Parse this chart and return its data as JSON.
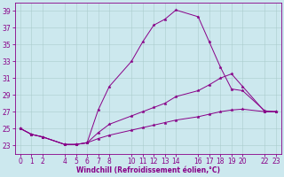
{
  "xlabel": "Windchill (Refroidissement éolien,°C)",
  "bg_color": "#cce8ee",
  "grid_color": "#aacccc",
  "line_color": "#880088",
  "x_ticks": [
    0,
    1,
    2,
    4,
    5,
    6,
    7,
    8,
    10,
    11,
    12,
    13,
    14,
    16,
    17,
    18,
    19,
    20,
    22,
    23
  ],
  "ylim": [
    22.0,
    40.0
  ],
  "yticks": [
    23,
    25,
    27,
    29,
    31,
    33,
    35,
    37,
    39
  ],
  "xlim": [
    -0.5,
    23.5
  ],
  "line1_x": [
    0,
    1,
    2,
    4,
    5,
    6,
    7,
    8,
    10,
    11,
    12,
    13,
    14,
    16,
    17,
    18,
    19,
    20,
    22,
    23
  ],
  "line1_y": [
    25.0,
    24.3,
    24.0,
    23.1,
    23.1,
    23.3,
    27.2,
    30.0,
    33.0,
    35.3,
    37.3,
    38.0,
    39.1,
    38.3,
    35.3,
    32.3,
    29.7,
    29.5,
    27.1,
    27.0
  ],
  "line2_x": [
    0,
    1,
    2,
    4,
    5,
    6,
    7,
    8,
    10,
    11,
    12,
    13,
    14,
    16,
    17,
    18,
    19,
    20,
    22,
    23
  ],
  "line2_y": [
    25.0,
    24.3,
    24.0,
    23.1,
    23.1,
    23.3,
    24.5,
    25.5,
    26.5,
    27.0,
    27.5,
    28.0,
    28.8,
    29.5,
    30.2,
    31.0,
    31.5,
    30.0,
    27.0,
    27.0
  ],
  "line3_x": [
    0,
    1,
    2,
    4,
    5,
    6,
    7,
    8,
    10,
    11,
    12,
    13,
    14,
    16,
    17,
    18,
    19,
    20,
    22,
    23
  ],
  "line3_y": [
    25.0,
    24.3,
    24.0,
    23.1,
    23.1,
    23.3,
    23.8,
    24.2,
    24.8,
    25.1,
    25.4,
    25.7,
    26.0,
    26.4,
    26.7,
    27.0,
    27.2,
    27.3,
    27.0,
    27.0
  ],
  "marker_size": 2.5,
  "linewidth": 0.7,
  "tick_labelsize": 5.5,
  "xlabel_fontsize": 5.5
}
